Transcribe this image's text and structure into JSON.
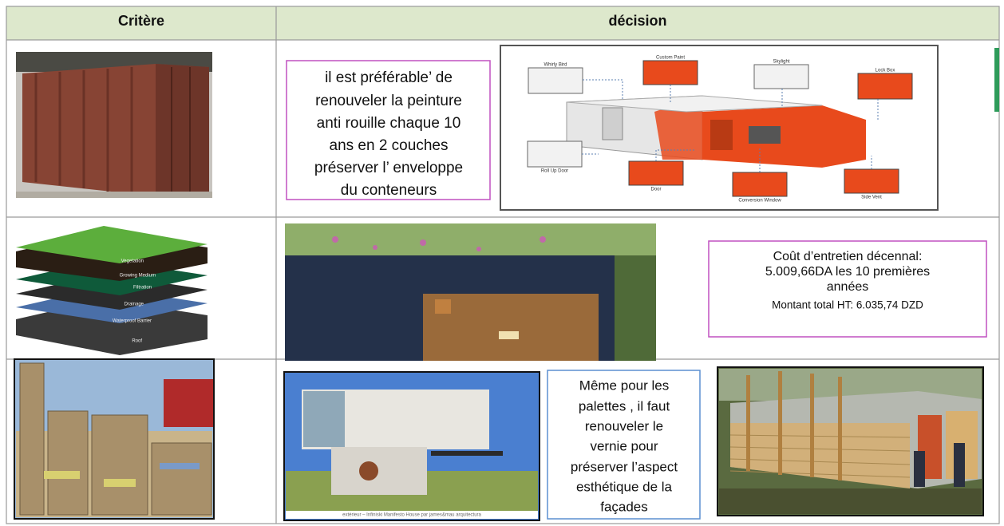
{
  "table": {
    "headers": [
      "Critère",
      "décision"
    ],
    "rows": [
      {
        "text": [
          "il est préférable’ de",
          "renouveler la peinture",
          "anti rouille chaque 10",
          "ans en 2 couches",
          "préserver l’ enveloppe",
          "du conteneurs"
        ],
        "diagram_labels": [
          "Whirly Bird",
          "Custom Paint",
          "Skylight",
          "Lock Box",
          "Roll Up Door",
          "Door",
          "Conversion Window",
          "Side Vent"
        ]
      },
      {
        "layers": [
          "Vegetation",
          "Growing Medium",
          "Filtration",
          "Drainage",
          "Waterproof Barrier",
          "Roof"
        ],
        "text": [
          "Coût d’entretien décennal:",
          "5.009,66DA les 10 premières",
          "années"
        ],
        "total": "Montant total HT:  6.035,74 DZD"
      },
      {
        "caption": "extérieur – Infiniski Manifesto House par james&mau arquitectura",
        "text": [
          "Même pour les",
          "palettes , il faut",
          "renouveler le",
          "vernie pour",
          "préserver l’aspect",
          "esthétique de la",
          "façades"
        ]
      }
    ]
  }
}
